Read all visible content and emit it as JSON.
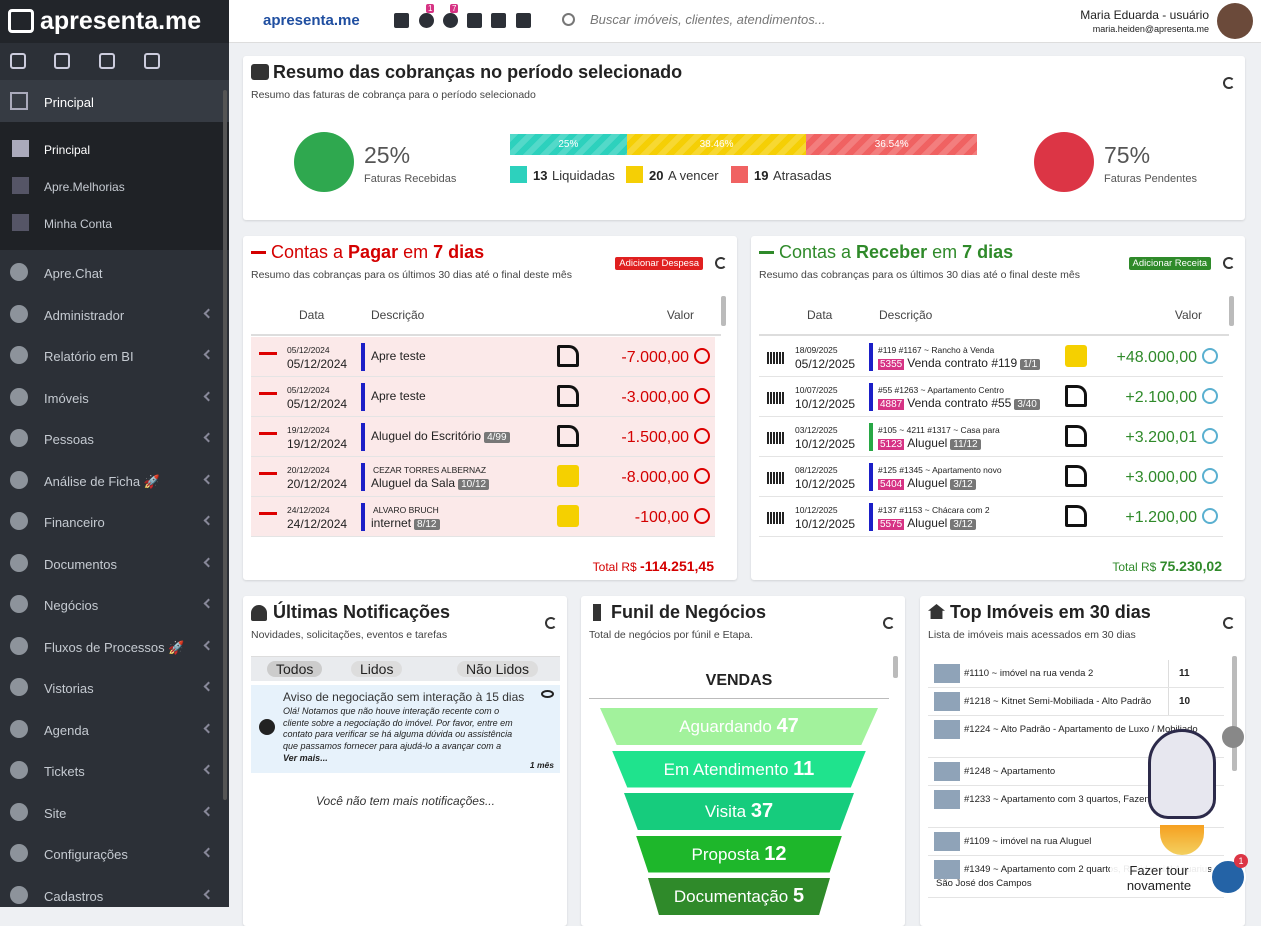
{
  "sidebar": {
    "brand": "apresenta.me",
    "section": "Principal",
    "subitems": [
      "Principal",
      "Apre.Melhorias",
      "Minha Conta"
    ],
    "items": [
      "Apre.Chat",
      "Administrador",
      "Relatório em BI",
      "Imóveis",
      "Pessoas",
      "Análise de Ficha 🚀",
      "Financeiro",
      "Documentos",
      "Negócios",
      "Fluxos de Processos 🚀",
      "Vistorias",
      "Agenda",
      "Tickets",
      "Site",
      "Configurações",
      "Cadastros"
    ]
  },
  "topbar": {
    "logo": "apresenta.me",
    "badges": [
      "1",
      "7"
    ],
    "search": "Buscar imóveis, clientes, atendimentos...",
    "user": "Maria Eduarda - usuário",
    "email": "maria.heiden@apresenta.me"
  },
  "summary": {
    "title": "Resumo das cobranças no período selecionado",
    "subtitle": "Resumo das faturas de cobrança para o período selecionado",
    "left": {
      "pct": "25%",
      "label": "Faturas Recebidas"
    },
    "right": {
      "pct": "75%",
      "label": "Faturas Pendentes"
    },
    "bar": [
      "25%",
      "38.46%",
      "36.54%"
    ],
    "legend": [
      {
        "count": 13,
        "label": "Liquidadas"
      },
      {
        "count": 20,
        "label": "A vencer"
      },
      {
        "count": 19,
        "label": "Atrasadas"
      }
    ]
  },
  "pagar": {
    "title": [
      "Contas a ",
      "Pagar",
      " em ",
      "7 dias"
    ],
    "button": "Adicionar Despesa",
    "subtitle": "Resumo das cobranças para os últimos 30 dias até o final deste mês",
    "headers": [
      "Data",
      "Descrição",
      "Valor"
    ],
    "rows": [
      {
        "d1": "05/12/2024",
        "d2": "05/12/2024",
        "desc": "Apre teste",
        "value": "-7.000,00"
      },
      {
        "d1": "05/12/2024",
        "d2": "05/12/2024",
        "desc": "Apre teste",
        "value": "-3.000,00"
      },
      {
        "d1": "19/12/2024",
        "d2": "19/12/2024",
        "desc": "Aluguel do Escritório",
        "tag": "4/99",
        "value": "-1.500,00"
      },
      {
        "d1": "20/12/2024",
        "d2": "20/12/2024",
        "person": "CEZAR TORRES ALBERNAZ",
        "desc": "Aluguel da Sala",
        "tag": "10/12",
        "value": "-8.000,00"
      },
      {
        "d1": "24/12/2024",
        "d2": "24/12/2024",
        "person": "ALVARO BRUCH",
        "desc": "internet",
        "tag": "8/12",
        "value": "-100,00"
      }
    ],
    "total_label": "Total R$",
    "total": "-114.251,45"
  },
  "receber": {
    "title": [
      "Contas a ",
      "Receber",
      " em ",
      "7 dias"
    ],
    "button": "Adicionar Receita",
    "subtitle": "Resumo das cobranças para os últimos 30 dias até o final deste mês",
    "headers": [
      "Data",
      "Descrição",
      "Valor"
    ],
    "rows": [
      {
        "d1": "18/09/2025",
        "d2": "05/12/2025",
        "ref": "#119 #1167 ~ Rancho à Venda",
        "code": "5355",
        "desc": "Venda contrato #119",
        "tag": "1/1",
        "value": "+48.000,00"
      },
      {
        "d1": "10/07/2025",
        "d2": "10/12/2025",
        "ref": "#55 #1263 ~ Apartamento Centro",
        "code": "4887",
        "desc": "Venda contrato #55",
        "tag": "3/40",
        "value": "+2.100,00"
      },
      {
        "d1": "03/12/2025",
        "d2": "10/12/2025",
        "ref": "#105 ~ 4211 #1317 ~ Casa para",
        "code": "5123",
        "desc": "Aluguel",
        "tag": "11/12",
        "value": "+3.200,01"
      },
      {
        "d1": "08/12/2025",
        "d2": "10/12/2025",
        "ref": "#125 #1345 ~ Apartamento novo",
        "code": "5404",
        "desc": "Aluguel",
        "tag": "3/12",
        "value": "+3.000,00"
      },
      {
        "d1": "10/12/2025",
        "d2": "10/12/2025",
        "ref": "#137 #1153 ~ Chácara com 2",
        "code": "5575",
        "desc": "Aluguel",
        "tag": "3/12",
        "value": "+1.200,00"
      }
    ],
    "total_label": "Total R$",
    "total": "75.230,02"
  },
  "notificacoes": {
    "title": "Últimas Notificações",
    "subtitle": "Novidades, solicitações, eventos e tarefas",
    "tabs": [
      "Todos",
      "Lidos",
      "Não Lidos"
    ],
    "item": {
      "title": "Aviso de negociação sem interação à 15 dias",
      "body": "Olá! Notamos que não houve interação recente com o cliente sobre a negociação do imóvel. Por favor, entre em contato para verificar se há alguma dúvida ou assistência que passamos fornecer para ajudá-lo a avançar com a",
      "more": "Ver mais...",
      "time": "1 mês"
    },
    "empty": "Você não tem mais notificações..."
  },
  "funil": {
    "title": "Funil de Negócios",
    "subtitle": "Total de negócios por fúnil e Etapa.",
    "name": "VENDAS",
    "stages": [
      {
        "label": "Aguardando",
        "count": "47"
      },
      {
        "label": "Em Atendimento",
        "count": "11"
      },
      {
        "label": "Visita",
        "count": "37"
      },
      {
        "label": "Proposta",
        "count": "12"
      },
      {
        "label": "Documentação",
        "count": "5"
      }
    ]
  },
  "imoveis": {
    "title": "Top Imóveis em 30 dias",
    "subtitle": "Lista de imóveis mais acessados em 30 dias",
    "rows": [
      {
        "name": "#1110 ~ imóvel na rua venda 2",
        "count": "11"
      },
      {
        "name": "#1218 ~ Kitnet Semi-Mobiliada - Alto Padrão",
        "count": "10"
      },
      {
        "name": "#1224 ~ Alto Padrão - Apartamento de Luxo / Mobiliado"
      },
      {
        "name": "#1248 ~ Apartamento"
      },
      {
        "name": "#1233 ~ Apartamento com 3 quartos, Fazenda - Itajaí"
      },
      {
        "name": "#1109 ~ imóvel na rua Aluguel"
      },
      {
        "name": "#1349 ~ Apartamento com 2 quartos, Residencial Aquarius - São José dos Campos"
      }
    ]
  },
  "tour": {
    "label": "Fazer tour novamente",
    "badge": "1"
  }
}
